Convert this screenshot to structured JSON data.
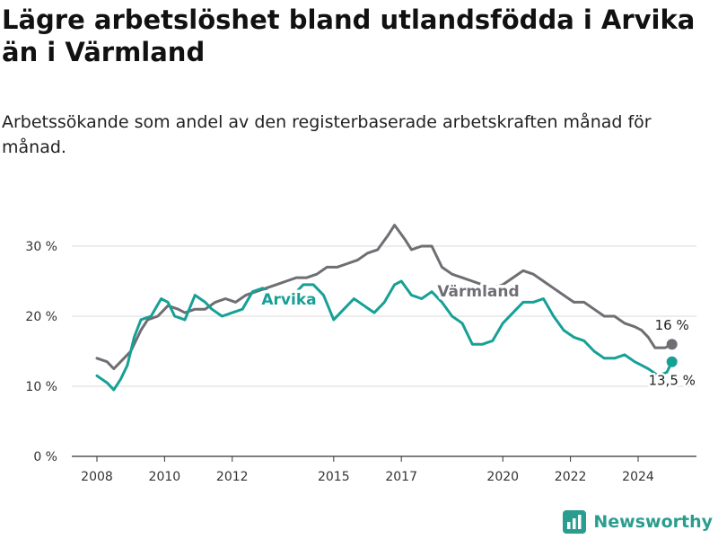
{
  "colors": {
    "varmland": "#6e6e73",
    "arvika": "#16a096",
    "grid": "#d9d9d9",
    "brand": "#2a9d8f"
  },
  "brand": {
    "name": "Newsworthy",
    "icon": "bar-chart-icon"
  },
  "chart_data": {
    "type": "line",
    "title": "Lägre arbetslöshet bland utlandsfödda i Arvika än i Värmland",
    "subtitle": "Arbetssökande som andel av den registerbaserade arbetskraften månad för månad.",
    "xlabel": "",
    "ylabel": "",
    "ylim": [
      0,
      35
    ],
    "xlim": [
      2007.6,
      2025.5
    ],
    "yticks": [
      {
        "value": 0,
        "label": "0 %"
      },
      {
        "value": 10,
        "label": "10 %"
      },
      {
        "value": 20,
        "label": "20 %"
      },
      {
        "value": 30,
        "label": "30 %"
      }
    ],
    "xticks": [
      {
        "value": 2008,
        "label": "2008"
      },
      {
        "value": 2010,
        "label": "2010"
      },
      {
        "value": 2012,
        "label": "2012"
      },
      {
        "value": 2015,
        "label": "2015"
      },
      {
        "value": 2017,
        "label": "2017"
      },
      {
        "value": 2020,
        "label": "2020"
      },
      {
        "value": 2022,
        "label": "2022"
      },
      {
        "value": 2024,
        "label": "2024"
      }
    ],
    "grid": true,
    "series": [
      {
        "name": "Värmland",
        "end_label": "16 %",
        "x": [
          2008.0,
          2008.3,
          2008.5,
          2008.7,
          2009.0,
          2009.3,
          2009.5,
          2009.8,
          2010.1,
          2010.4,
          2010.6,
          2010.9,
          2011.2,
          2011.5,
          2011.8,
          2012.1,
          2012.4,
          2012.7,
          2013.0,
          2013.3,
          2013.6,
          2013.9,
          2014.2,
          2014.5,
          2014.8,
          2015.1,
          2015.4,
          2015.7,
          2016.0,
          2016.3,
          2016.6,
          2016.8,
          2016.95,
          2017.1,
          2017.3,
          2017.6,
          2017.9,
          2018.2,
          2018.5,
          2018.8,
          2019.1,
          2019.4,
          2019.7,
          2020.0,
          2020.3,
          2020.6,
          2020.9,
          2021.2,
          2021.5,
          2021.8,
          2022.1,
          2022.4,
          2022.7,
          2023.0,
          2023.3,
          2023.6,
          2023.9,
          2024.1,
          2024.3,
          2024.5,
          2024.8,
          2025.0
        ],
        "values": [
          14,
          13.5,
          12.5,
          13.5,
          15,
          18,
          19.5,
          20,
          21.5,
          21,
          20.5,
          21,
          21,
          22,
          22.5,
          22,
          23,
          23.5,
          24,
          24.5,
          25,
          25.5,
          25.5,
          26,
          27,
          27,
          27.5,
          28,
          29,
          29.5,
          31.5,
          33,
          32,
          31,
          29.5,
          30,
          30,
          27,
          26,
          25.5,
          25,
          24.5,
          24,
          24.5,
          25.5,
          26.5,
          26,
          25,
          24,
          23,
          22,
          22,
          21,
          20,
          20,
          19,
          18.5,
          18,
          17,
          15.5,
          15.5,
          16
        ]
      },
      {
        "name": "Arvika",
        "end_label": "13,5 %",
        "x": [
          2008.0,
          2008.3,
          2008.5,
          2008.7,
          2008.9,
          2009.1,
          2009.3,
          2009.6,
          2009.9,
          2010.1,
          2010.3,
          2010.6,
          2010.9,
          2011.2,
          2011.4,
          2011.7,
          2012.0,
          2012.3,
          2012.6,
          2012.9,
          2013.2,
          2013.5,
          2013.8,
          2014.1,
          2014.4,
          2014.7,
          2015.0,
          2015.3,
          2015.6,
          2015.9,
          2016.2,
          2016.5,
          2016.8,
          2017.0,
          2017.3,
          2017.6,
          2017.9,
          2018.2,
          2018.5,
          2018.8,
          2019.1,
          2019.4,
          2019.7,
          2020.0,
          2020.3,
          2020.6,
          2020.9,
          2021.2,
          2021.5,
          2021.8,
          2022.1,
          2022.4,
          2022.7,
          2023.0,
          2023.3,
          2023.6,
          2023.9,
          2024.1,
          2024.3,
          2024.6,
          2024.85,
          2025.0
        ],
        "values": [
          11.5,
          10.5,
          9.5,
          11,
          13,
          17,
          19.5,
          20,
          22.5,
          22,
          20,
          19.5,
          23,
          22,
          21,
          20,
          20.5,
          21,
          23.5,
          24,
          23,
          22.5,
          23,
          24.5,
          24.5,
          23,
          19.5,
          21,
          22.5,
          21.5,
          20.5,
          22,
          24.5,
          25,
          23,
          22.5,
          23.5,
          22,
          20,
          19,
          16,
          16,
          16.5,
          19,
          20.5,
          22,
          22,
          22.5,
          20,
          18,
          17,
          16.5,
          15,
          14,
          14,
          14.5,
          13.5,
          13,
          12.5,
          11.5,
          12,
          13.5
        ]
      }
    ],
    "annotations": [
      {
        "text": "Arvika",
        "series": "Arvika"
      },
      {
        "text": "Värmland",
        "series": "Värmland"
      }
    ]
  }
}
